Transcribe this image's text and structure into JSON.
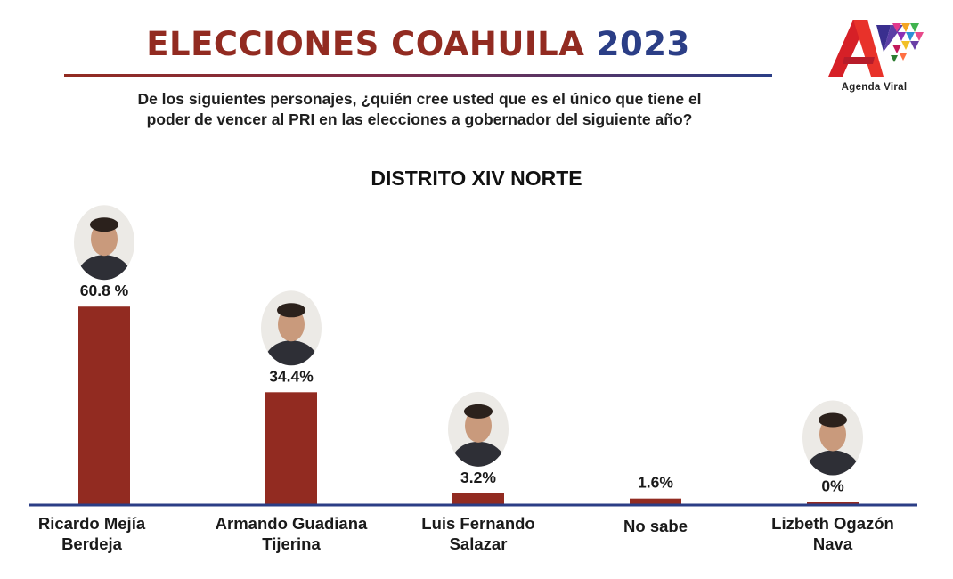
{
  "header": {
    "title_part1": "ELECCIONES COAHUILA",
    "title_part2": "2023",
    "question": "De los siguientes personajes, ¿quién cree usted que es el único que  tiene el\npoder de vencer al PRI en las elecciones a gobernador del  siguiente año?"
  },
  "logo": {
    "text": "Agenda Viral",
    "icon": "agenda-viral-logo"
  },
  "colors": {
    "title_red": "#922b21",
    "title_blue": "#2b3e86",
    "bar": "#922b21",
    "axis": "#2b3e86"
  },
  "chart_data": {
    "type": "bar",
    "title": "DISTRITO XIV NORTE",
    "categories": [
      "Ricardo Mejía\nBerdeja",
      "Armando Guadiana\nTijerina",
      "Luis Fernando\nSalazar",
      "No sabe",
      "Lizbeth Ogazón\nNava"
    ],
    "values": [
      60.8,
      34.4,
      3.2,
      1.6,
      0
    ],
    "value_labels": [
      "60.8 %",
      "34.4%",
      "3.2%",
      "1.6%",
      "0%"
    ],
    "photos": [
      "candidate-photo",
      "candidate-photo",
      "candidate-photo",
      "",
      "candidate-photo"
    ],
    "ylim": [
      0,
      61
    ],
    "grid": false,
    "legend": "none"
  }
}
